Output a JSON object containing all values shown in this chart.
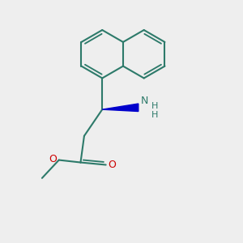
{
  "background_color": "#eeeeee",
  "bond_color": "#2d7a6a",
  "bond_lw": 1.5,
  "wedge_color": "#0000cc",
  "O_color": "#cc0000",
  "N_color": "#2d7a6a",
  "figsize": [
    3.0,
    3.0
  ],
  "dpi": 100,
  "xlim": [
    -1,
    9
  ],
  "ylim": [
    -1,
    9
  ]
}
